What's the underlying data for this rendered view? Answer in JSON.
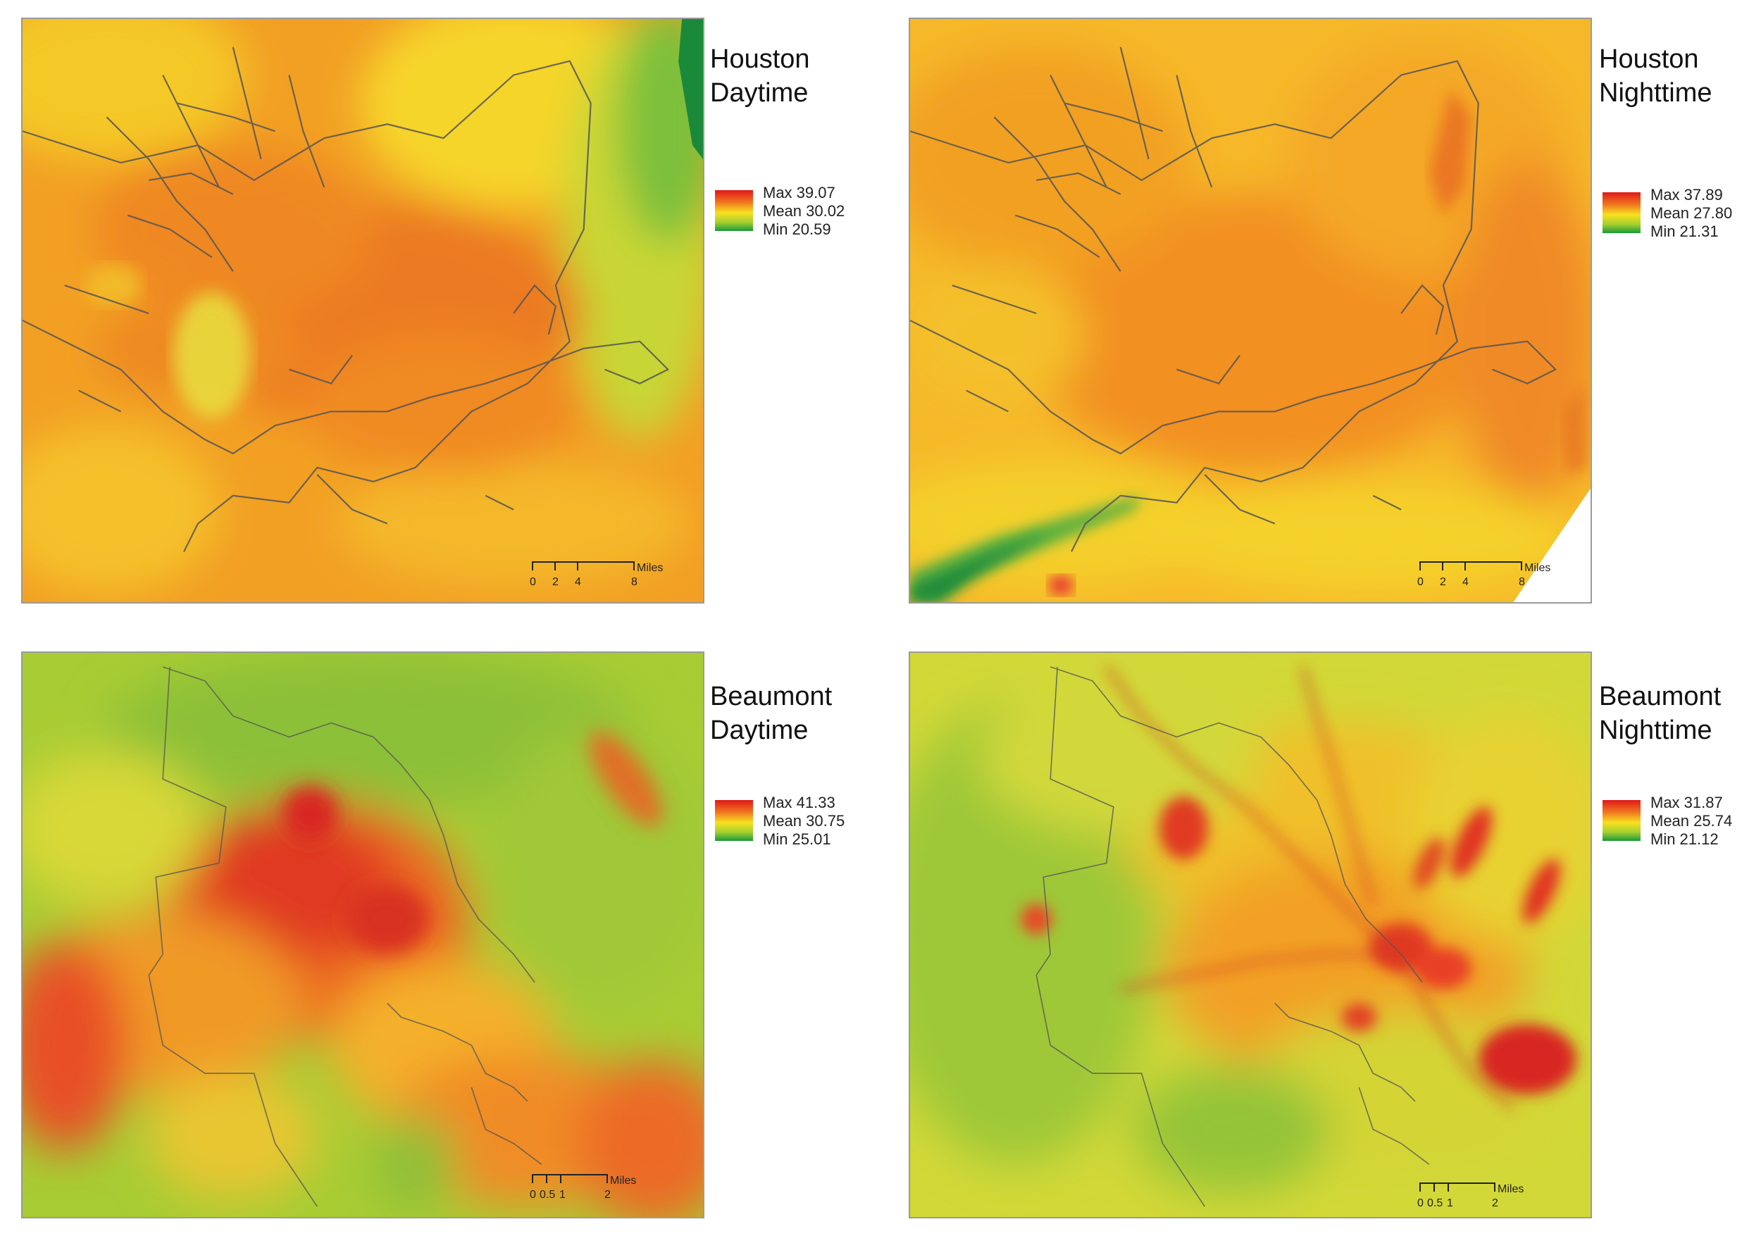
{
  "panels": [
    {
      "id": "houston-day",
      "title_line1": "Houston",
      "title_line2": "Daytime",
      "legend": {
        "max": "Max 39.07",
        "mean": "Mean 30.02",
        "min": "Min 20.59"
      },
      "scale": {
        "unit": "Miles",
        "ticks": [
          "0",
          "2",
          "4",
          "8"
        ]
      }
    },
    {
      "id": "houston-night",
      "title_line1": "Houston",
      "title_line2": "Nighttime",
      "legend": {
        "max": "Max 37.89",
        "mean": "Mean 27.80",
        "min": "Min 21.31"
      },
      "scale": {
        "unit": "Miles",
        "ticks": [
          "0",
          "2",
          "4",
          "8"
        ]
      }
    },
    {
      "id": "beaumont-day",
      "title_line1": "Beaumont",
      "title_line2": "Daytime",
      "legend": {
        "max": "Max 41.33",
        "mean": "Mean 30.75",
        "min": "Min 25.01"
      },
      "scale": {
        "unit": "Miles",
        "ticks": [
          "0",
          "0.5",
          "1",
          "2"
        ]
      }
    },
    {
      "id": "beaumont-night",
      "title_line1": "Beaumont",
      "title_line2": "Nighttime",
      "legend": {
        "max": "Max 31.87",
        "mean": "Mean 25.74",
        "min": "Min 21.12"
      },
      "scale": {
        "unit": "Miles",
        "ticks": [
          "0",
          "0.5",
          "1",
          "2"
        ]
      }
    }
  ],
  "colors": {
    "hot": "#e01818",
    "warm": "#f07820",
    "mid": "#f8e020",
    "cool": "#a8d030",
    "cold": "#1a9a3a",
    "boundary": "#555555"
  }
}
